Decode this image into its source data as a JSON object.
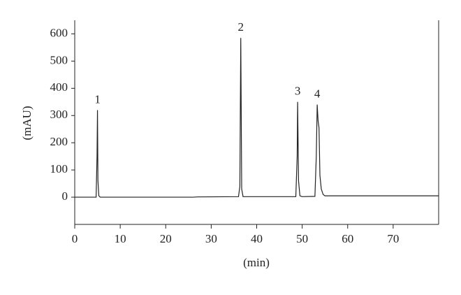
{
  "chart_data": {
    "type": "line",
    "xlabel": "(min)",
    "ylabel": "(mAU)",
    "x": [
      0,
      4.7,
      4.9,
      5.0,
      5.1,
      5.3,
      5.6,
      26,
      27,
      36.0,
      36.3,
      36.5,
      36.7,
      37.0,
      48.6,
      48.9,
      49.0,
      49.2,
      49.5,
      50,
      52.8,
      53.1,
      53.3,
      53.5,
      53.7,
      53.9,
      54.2,
      54.6,
      55,
      80
    ],
    "series": [
      {
        "color": "#222222",
        "values": [
          0,
          0,
          150,
          320,
          60,
          5,
          0,
          0,
          1,
          2,
          40,
          585,
          30,
          2,
          2,
          150,
          350,
          60,
          5,
          2,
          3,
          150,
          340,
          280,
          255,
          80,
          30,
          10,
          5,
          5
        ]
      }
    ],
    "annotations": [
      {
        "text": "1",
        "x": 5.0,
        "y": 320
      },
      {
        "text": "2",
        "x": 36.5,
        "y": 585
      },
      {
        "text": "3",
        "x": 49.0,
        "y": 350
      },
      {
        "text": "4",
        "x": 53.3,
        "y": 340
      }
    ],
    "xlim": [
      0,
      80
    ],
    "xticks": [
      0,
      10,
      20,
      30,
      40,
      50,
      60,
      70
    ],
    "ylim": [
      -100,
      650
    ],
    "yticks": [
      0,
      100,
      200,
      300,
      400,
      500,
      600
    ]
  }
}
